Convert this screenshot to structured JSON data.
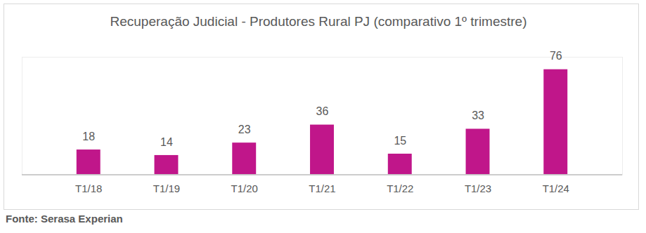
{
  "chart_data": {
    "type": "bar",
    "title": "Recuperação Judicial - Produtores Rural PJ (comparativo 1º trimestre)",
    "source": "Fonte: Serasa Experian",
    "categories": [
      "T1/18",
      "T1/19",
      "T1/20",
      "T1/21",
      "T1/22",
      "T1/23",
      "T1/24"
    ],
    "values": [
      18,
      14,
      23,
      36,
      15,
      33,
      76
    ],
    "color": "#c0168a",
    "ylim": [
      0,
      85
    ],
    "grid": false,
    "data_labels": true,
    "tick_labels": "x"
  }
}
